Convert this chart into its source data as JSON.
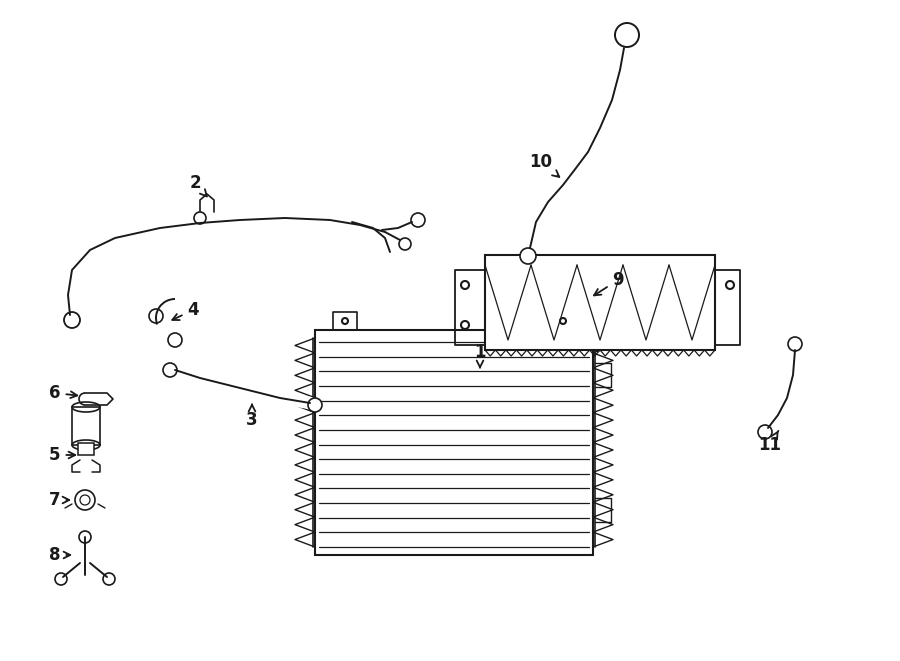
{
  "bg_color": "#ffffff",
  "line_color": "#1a1a1a",
  "lw": 1.5,
  "fig_w": 9.0,
  "fig_h": 6.61,
  "dpi": 100
}
